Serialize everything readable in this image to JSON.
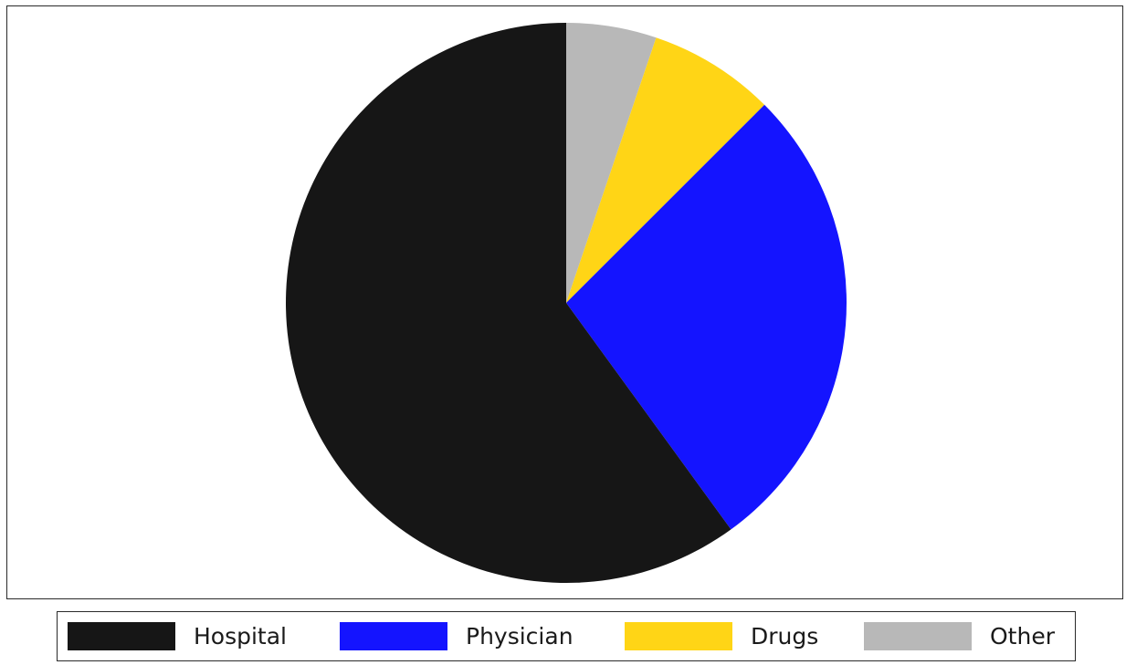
{
  "chart_data": {
    "type": "pie",
    "title": "",
    "start_angle_deg": 0,
    "direction": "clockwise",
    "slices": [
      {
        "label": "Other",
        "value": 5.2,
        "color": "#b8b8b8"
      },
      {
        "label": "Drugs",
        "value": 7.3,
        "color": "#ffd516"
      },
      {
        "label": "Physician",
        "value": 27.5,
        "color": "#1414ff"
      },
      {
        "label": "Hospital",
        "value": 60.0,
        "color": "#161616"
      }
    ],
    "legend": {
      "placement": "bottom",
      "entries": [
        {
          "label": "Hospital",
          "color": "#161616"
        },
        {
          "label": "Physician",
          "color": "#1414ff"
        },
        {
          "label": "Drugs",
          "color": "#ffd516"
        },
        {
          "label": "Other",
          "color": "#b8b8b8"
        }
      ]
    }
  }
}
